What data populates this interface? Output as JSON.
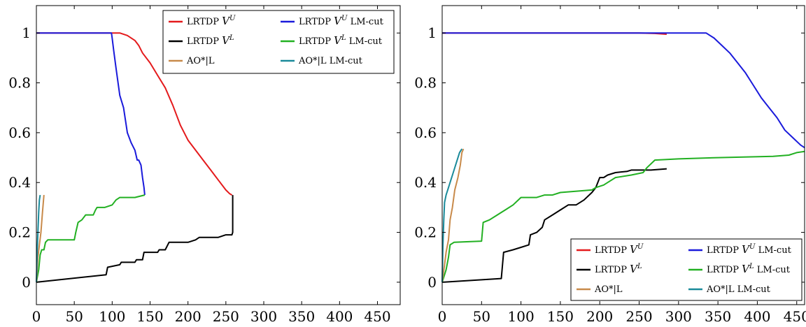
{
  "chart_data": [
    {
      "type": "line",
      "title": "",
      "xlabel": "",
      "ylabel": "",
      "xlim": [
        0,
        480
      ],
      "ylim": [
        -0.09,
        1.11
      ],
      "xticks": [
        0,
        50,
        100,
        150,
        200,
        250,
        300,
        350,
        400,
        450
      ],
      "yticks": [
        0,
        0.2,
        0.4,
        0.6,
        0.8,
        1
      ],
      "grid": false,
      "legend_position": "top-right",
      "series": [
        {
          "name": "LRTDP V^U",
          "color": "#e41a1c",
          "x": [
            0,
            110,
            120,
            130,
            135,
            140,
            150,
            160,
            170,
            180,
            190,
            200,
            210,
            220,
            230,
            240,
            250,
            255,
            258
          ],
          "y": [
            1,
            1,
            0.99,
            0.97,
            0.95,
            0.92,
            0.88,
            0.83,
            0.78,
            0.71,
            0.63,
            0.57,
            0.53,
            0.49,
            0.45,
            0.41,
            0.37,
            0.355,
            0.35
          ]
        },
        {
          "name": "LRTDP V^U LM-cut",
          "color": "#1a1adb",
          "x": [
            0,
            99,
            100,
            102,
            105,
            110,
            115,
            120,
            125,
            130,
            133,
            135,
            138,
            140,
            142,
            143
          ],
          "y": [
            1,
            1,
            0.98,
            0.93,
            0.86,
            0.75,
            0.7,
            0.6,
            0.56,
            0.53,
            0.49,
            0.49,
            0.47,
            0.42,
            0.38,
            0.35
          ]
        },
        {
          "name": "LRTDP V^L",
          "color": "#000000",
          "x": [
            0,
            92,
            94,
            110,
            112,
            130,
            132,
            140,
            142,
            160,
            162,
            170,
            175,
            200,
            210,
            215,
            220,
            240,
            250,
            258,
            259,
            259
          ],
          "y": [
            0,
            0.03,
            0.06,
            0.07,
            0.08,
            0.08,
            0.09,
            0.09,
            0.12,
            0.12,
            0.13,
            0.13,
            0.16,
            0.16,
            0.17,
            0.18,
            0.18,
            0.18,
            0.19,
            0.19,
            0.2,
            0.35
          ]
        },
        {
          "name": "LRTDP V^L LM-cut",
          "color": "#22b022",
          "x": [
            0,
            3,
            5,
            7,
            10,
            12,
            15,
            17,
            50,
            52,
            55,
            60,
            65,
            75,
            78,
            80,
            90,
            100,
            105,
            110,
            120,
            130,
            143
          ],
          "y": [
            0,
            0.05,
            0.11,
            0.13,
            0.13,
            0.16,
            0.17,
            0.17,
            0.17,
            0.2,
            0.24,
            0.25,
            0.27,
            0.27,
            0.29,
            0.3,
            0.3,
            0.31,
            0.33,
            0.34,
            0.34,
            0.34,
            0.35
          ]
        },
        {
          "name": "AO*|L",
          "color": "#c88a4a",
          "x": [
            0,
            2,
            4,
            6,
            8,
            10
          ],
          "y": [
            0,
            0.1,
            0.15,
            0.2,
            0.28,
            0.35
          ]
        },
        {
          "name": "AO*|L LM-cut",
          "color": "#1a8a9a",
          "x": [
            0,
            1,
            2,
            3,
            4,
            5
          ],
          "y": [
            0,
            0.12,
            0.2,
            0.28,
            0.33,
            0.35
          ]
        }
      ]
    },
    {
      "type": "line",
      "title": "",
      "xlabel": "",
      "ylabel": "",
      "xlim": [
        0,
        460
      ],
      "ylim": [
        -0.09,
        1.11
      ],
      "xticks": [
        0,
        50,
        100,
        150,
        200,
        250,
        300,
        350,
        400,
        450
      ],
      "yticks": [
        0,
        0.2,
        0.4,
        0.6,
        0.8,
        1
      ],
      "grid": false,
      "legend_position": "bottom-right",
      "series": [
        {
          "name": "LRTDP V^U",
          "color": "#e41a1c",
          "x": [
            0,
            250,
            270,
            285
          ],
          "y": [
            1,
            1,
            0.998,
            0.995
          ]
        },
        {
          "name": "LRTDP V^U LM-cut",
          "color": "#1a1adb",
          "x": [
            0,
            335,
            345,
            355,
            365,
            375,
            385,
            395,
            405,
            415,
            425,
            435,
            445,
            455,
            460
          ],
          "y": [
            1,
            1,
            0.98,
            0.95,
            0.92,
            0.88,
            0.84,
            0.79,
            0.74,
            0.7,
            0.66,
            0.61,
            0.58,
            0.55,
            0.54
          ]
        },
        {
          "name": "LRTDP V^L",
          "color": "#000000",
          "x": [
            0,
            75,
            78,
            90,
            100,
            110,
            112,
            120,
            127,
            130,
            140,
            150,
            160,
            170,
            180,
            190,
            195,
            200,
            205,
            210,
            220,
            235,
            240,
            250,
            265,
            285
          ],
          "y": [
            0,
            0.015,
            0.12,
            0.13,
            0.14,
            0.15,
            0.19,
            0.2,
            0.22,
            0.25,
            0.27,
            0.29,
            0.31,
            0.31,
            0.33,
            0.36,
            0.38,
            0.42,
            0.42,
            0.43,
            0.44,
            0.445,
            0.45,
            0.45,
            0.45,
            0.455
          ]
        },
        {
          "name": "LRTDP V^L LM-cut",
          "color": "#22b022",
          "x": [
            0,
            5,
            8,
            10,
            15,
            50,
            52,
            60,
            70,
            75,
            80,
            90,
            100,
            120,
            130,
            140,
            150,
            190,
            195,
            205,
            210,
            220,
            240,
            255,
            260,
            270,
            300,
            350,
            420,
            440,
            450,
            460
          ],
          "y": [
            0,
            0.05,
            0.1,
            0.15,
            0.16,
            0.165,
            0.24,
            0.25,
            0.27,
            0.28,
            0.29,
            0.31,
            0.34,
            0.34,
            0.35,
            0.35,
            0.36,
            0.37,
            0.38,
            0.39,
            0.4,
            0.42,
            0.43,
            0.44,
            0.46,
            0.49,
            0.495,
            0.5,
            0.505,
            0.51,
            0.52,
            0.525
          ]
        },
        {
          "name": "AO*|L",
          "color": "#c88a4a",
          "x": [
            0,
            3,
            5,
            8,
            10,
            13,
            16,
            20,
            23,
            25,
            27
          ],
          "y": [
            0,
            0.07,
            0.12,
            0.17,
            0.25,
            0.3,
            0.37,
            0.42,
            0.47,
            0.52,
            0.535
          ]
        },
        {
          "name": "AO*|L LM-cut",
          "color": "#1a8a9a",
          "x": [
            0,
            1,
            2,
            3,
            5,
            7,
            10,
            14,
            18,
            22,
            25
          ],
          "y": [
            0,
            0.15,
            0.25,
            0.32,
            0.35,
            0.37,
            0.4,
            0.44,
            0.48,
            0.52,
            0.535
          ]
        }
      ]
    }
  ]
}
